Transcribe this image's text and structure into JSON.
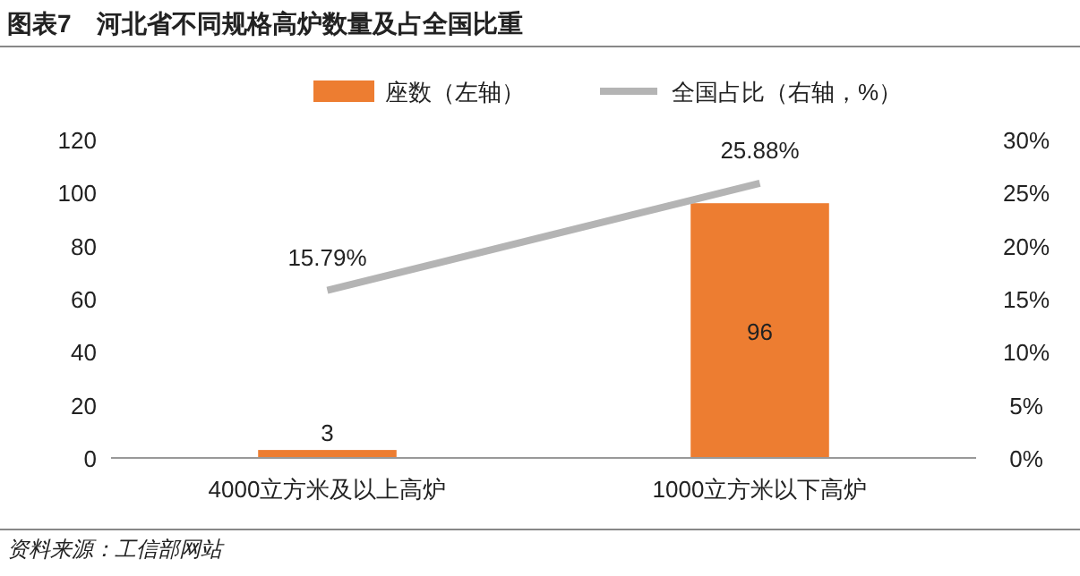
{
  "chart_data": {
    "type": "bar",
    "title": "图表7　河北省不同规格高炉数量及占全国比重",
    "categories": [
      "4000立方米及以上高炉",
      "1000立方米以下高炉"
    ],
    "series": [
      {
        "name": "座数（左轴）",
        "color": "#ed7d31",
        "values": [
          3,
          96
        ],
        "value_labels": [
          "3",
          "96"
        ]
      },
      {
        "name": "全国占比（右轴，%）",
        "type": "line",
        "axis": "y2",
        "color": "#b4b4b4",
        "values": [
          15.79,
          25.88
        ],
        "value_labels": [
          "15.79%",
          "25.88%"
        ]
      }
    ],
    "ylim": [
      0,
      120
    ],
    "yticks": [
      0,
      20,
      40,
      60,
      80,
      100,
      120
    ],
    "y2lim": [
      0,
      30
    ],
    "y2ticks": [
      {
        "value": 0,
        "label": "0%"
      },
      {
        "value": 5,
        "label": "5%"
      },
      {
        "value": 10,
        "label": "10%"
      },
      {
        "value": 15,
        "label": "15%"
      },
      {
        "value": 20,
        "label": "20%"
      },
      {
        "value": 25,
        "label": "25%"
      },
      {
        "value": 30,
        "label": "30%"
      }
    ],
    "legend": "top right",
    "marker": "none",
    "annotations": [
      "资料来源：工信部网站"
    ]
  }
}
